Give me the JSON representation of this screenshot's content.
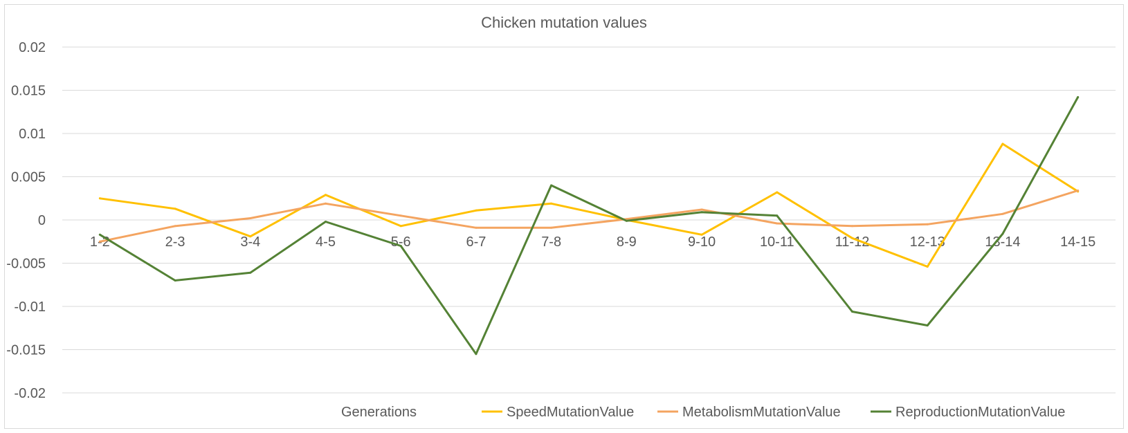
{
  "chart_data": {
    "type": "line",
    "title": "Chicken mutation values",
    "xlabel": "Generations",
    "ylabel": "",
    "categories": [
      "1-2",
      "2-3",
      "3-4",
      "4-5",
      "5-6",
      "6-7",
      "7-8",
      "8-9",
      "9-10",
      "10-11",
      "11-12",
      "12-13",
      "13-14",
      "14-15"
    ],
    "yticks": [
      "0.02",
      "0.015",
      "0.01",
      "0.005",
      "0",
      "-0.005",
      "-0.01",
      "-0.015",
      "-0.02"
    ],
    "ylim": [
      -0.02,
      0.02
    ],
    "grid": true,
    "legend_position": "bottom",
    "series": [
      {
        "name": "SpeedMutationValue",
        "color": "#FFC000",
        "values": [
          0.0025,
          0.0013,
          -0.0019,
          0.0029,
          -0.0007,
          0.0011,
          0.0019,
          0.0,
          -0.0017,
          0.0032,
          -0.0021,
          -0.0054,
          0.0088,
          0.0033
        ]
      },
      {
        "name": "MetabolismMutationValue",
        "color": "#F4A460",
        "values": [
          -0.0025,
          -0.0007,
          0.0002,
          0.0019,
          0.0005,
          -0.0009,
          -0.0009,
          0.0001,
          0.0012,
          -0.0004,
          -0.0007,
          -0.0005,
          0.0007,
          0.0034
        ]
      },
      {
        "name": "ReproductionMutationValue",
        "color": "#548235",
        "values": [
          -0.0017,
          -0.007,
          -0.0061,
          -0.0002,
          -0.003,
          -0.0155,
          0.004,
          -0.0001,
          0.0009,
          0.0005,
          -0.0106,
          -0.0122,
          -0.0016,
          0.0142
        ]
      }
    ]
  }
}
